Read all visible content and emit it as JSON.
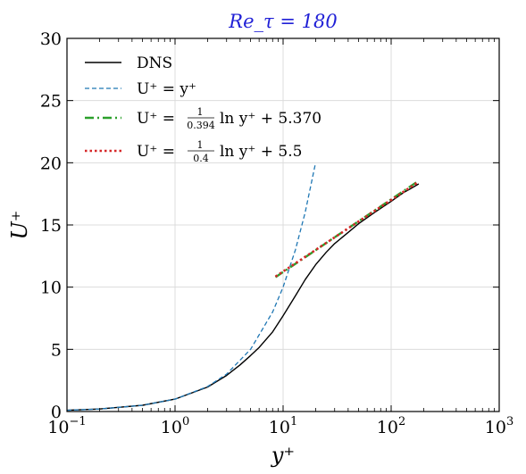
{
  "chart_data": {
    "type": "line",
    "title": "Re_τ = 180",
    "title_color": "#1f1fd6",
    "xlabel": "y⁺",
    "ylabel": "U⁺",
    "xscale": "log",
    "xlim": [
      0.1,
      1000
    ],
    "ylim": [
      0,
      30
    ],
    "x_ticks": [
      0.1,
      1,
      10,
      100,
      1000
    ],
    "x_tick_labels": [
      {
        "base": "10",
        "exp": "−1"
      },
      {
        "base": "10",
        "exp": "0"
      },
      {
        "base": "10",
        "exp": "1"
      },
      {
        "base": "10",
        "exp": "2"
      },
      {
        "base": "10",
        "exp": "3"
      }
    ],
    "y_ticks": [
      0,
      5,
      10,
      15,
      20,
      25,
      30
    ],
    "y_tick_labels": [
      "0",
      "5",
      "10",
      "15",
      "20",
      "25",
      "30"
    ],
    "grid": true,
    "legend_position": "top-left",
    "series": [
      {
        "name": "DNS",
        "color": "#000000",
        "dash": "solid",
        "x": [
          0.1,
          0.2,
          0.5,
          1,
          2,
          3,
          4,
          5,
          6,
          8,
          10,
          13,
          16,
          20,
          25,
          30,
          40,
          50,
          70,
          100,
          130,
          150,
          180
        ],
        "y": [
          0.1,
          0.2,
          0.5,
          1.0,
          1.97,
          2.9,
          3.75,
          4.5,
          5.15,
          6.4,
          7.7,
          9.3,
          10.6,
          11.8,
          12.8,
          13.5,
          14.4,
          15.1,
          16.0,
          16.9,
          17.6,
          17.9,
          18.3
        ]
      },
      {
        "name": "U⁺ = y⁺",
        "color": "#1f77b4",
        "dash": "dashed",
        "x": [
          0.1,
          0.2,
          0.5,
          1,
          2,
          3,
          5,
          8,
          10,
          13,
          16,
          20
        ],
        "y": [
          0.1,
          0.2,
          0.5,
          1,
          2,
          3,
          5,
          8,
          10,
          13,
          16,
          20
        ]
      },
      {
        "name": "U⁺ = (1/0.394) ln y⁺ + 5.370",
        "color": "#2ca02c",
        "dash": "dashdot",
        "x": [
          8.5,
          15,
          30,
          60,
          100,
          180
        ],
        "y": [
          10.8,
          12.24,
          14.0,
          15.76,
          17.06,
          18.55
        ]
      },
      {
        "name": "U⁺ = (1/0.4) ln y⁺ + 5.5",
        "color": "#d62728",
        "dash": "dotted",
        "x": [
          8.5,
          15,
          30,
          60,
          100,
          180
        ],
        "y": [
          10.85,
          12.27,
          14.0,
          15.74,
          17.01,
          18.48
        ]
      }
    ],
    "legend": [
      {
        "series": 0,
        "label": "DNS",
        "frac": null,
        "after": ""
      },
      {
        "series": 1,
        "label": "U⁺ = y⁺",
        "frac": null,
        "after": ""
      },
      {
        "series": 2,
        "label": "U⁺ = ",
        "frac": {
          "num": "1",
          "den": "0.394"
        },
        "after": "ln y⁺ + 5.370"
      },
      {
        "series": 3,
        "label": "U⁺ = ",
        "frac": {
          "num": "1",
          "den": "0.4"
        },
        "after": "ln y⁺ + 5.5"
      }
    ]
  }
}
